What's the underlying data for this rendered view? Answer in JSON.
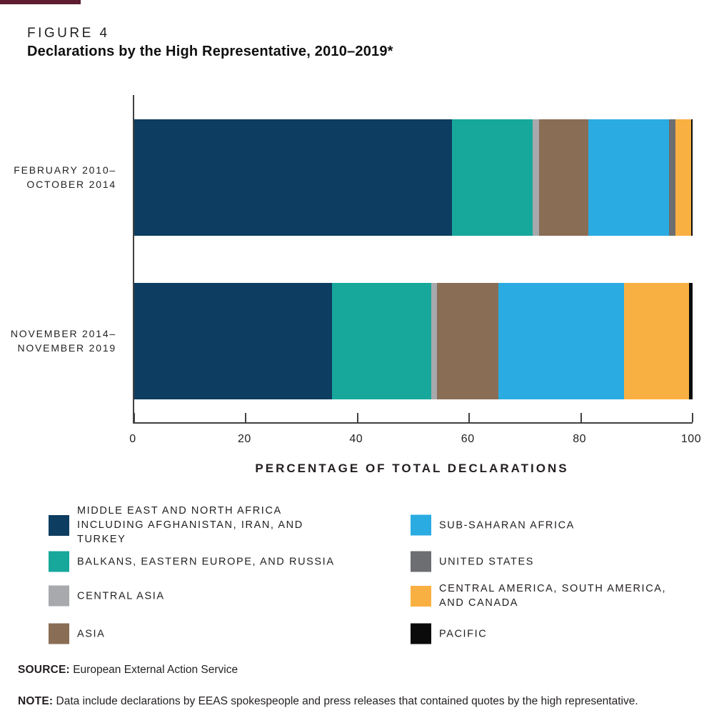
{
  "figure_label": "FIGURE 4",
  "title": "Declarations by the High Representative, 2010–2019*",
  "accent_color": "#5e1d30",
  "axis_color": "#404040",
  "chart_data": {
    "type": "bar",
    "orientation": "horizontal",
    "stacked": true,
    "title": "Declarations by the High Representative, 2010–2019*",
    "xlabel": "PERCENTAGE OF TOTAL DECLARATIONS",
    "xlim": [
      0,
      100
    ],
    "xticks": [
      0,
      20,
      40,
      60,
      80,
      100
    ],
    "grid": false,
    "legend_position": "bottom",
    "categories": [
      "FEBRUARY 2010–OCTOBER 2014",
      "NOVEMBER 2014–NOVEMBER 2019"
    ],
    "series": [
      {
        "name": "MIDDLE EAST AND NORTH AFRICA INCLUDING AFGHANISTAN, IRAN, AND TURKEY",
        "color": "#0d3d60",
        "values": [
          56.9,
          35.4
        ]
      },
      {
        "name": "BALKANS, EASTERN EUROPE, AND RUSSIA",
        "color": "#17a79b",
        "values": [
          14.5,
          17.8
        ]
      },
      {
        "name": "CENTRAL ASIA",
        "color": "#a7a9ac",
        "values": [
          1.1,
          1.0
        ]
      },
      {
        "name": "ASIA",
        "color": "#8a6d55",
        "values": [
          8.8,
          11.0
        ]
      },
      {
        "name": "SUB-SAHARAN AFRICA",
        "color": "#2aabe2",
        "values": [
          14.5,
          22.5
        ]
      },
      {
        "name": "UNITED STATES",
        "color": "#6d6e71",
        "values": [
          1.1,
          0
        ]
      },
      {
        "name": "CENTRAL AMERICA, SOUTH AMERICA, AND CANADA",
        "color": "#f9b042",
        "values": [
          2.8,
          11.7
        ]
      },
      {
        "name": "PACIFIC",
        "color": "#0b0b0b",
        "values": [
          0.3,
          0.6
        ]
      }
    ]
  },
  "bar_labels": [
    {
      "lines": [
        "FEBRUARY 2010–",
        "OCTOBER 2014"
      ]
    },
    {
      "lines": [
        "NOVEMBER 2014–",
        "NOVEMBER 2019"
      ]
    }
  ],
  "legend": {
    "left": [
      {
        "color": "#0d3d60",
        "lines": [
          "MIDDLE EAST AND NORTH AFRICA",
          "INCLUDING AFGHANISTAN, IRAN, AND TURKEY"
        ]
      },
      {
        "color": "#17a79b",
        "lines": [
          "BALKANS, EASTERN EUROPE, AND RUSSIA"
        ]
      },
      {
        "color": "#a7a9ac",
        "lines": [
          "CENTRAL ASIA"
        ]
      },
      {
        "color": "#8a6d55",
        "lines": [
          "ASIA"
        ]
      }
    ],
    "right": [
      {
        "color": "#2aabe2",
        "lines": [
          "SUB-SAHARAN AFRICA"
        ]
      },
      {
        "color": "#6d6e71",
        "lines": [
          "UNITED STATES"
        ]
      },
      {
        "color": "#f9b042",
        "lines": [
          "CENTRAL AMERICA, SOUTH AMERICA,",
          "AND CANADA"
        ]
      },
      {
        "color": "#0b0b0b",
        "lines": [
          "PACIFIC"
        ]
      }
    ]
  },
  "source": {
    "label": "SOURCE:",
    "text": "European External Action Service"
  },
  "note": {
    "label": "NOTE:",
    "text": "Data include declarations by EEAS spokespeople and press releases that contained quotes by the high representative."
  }
}
